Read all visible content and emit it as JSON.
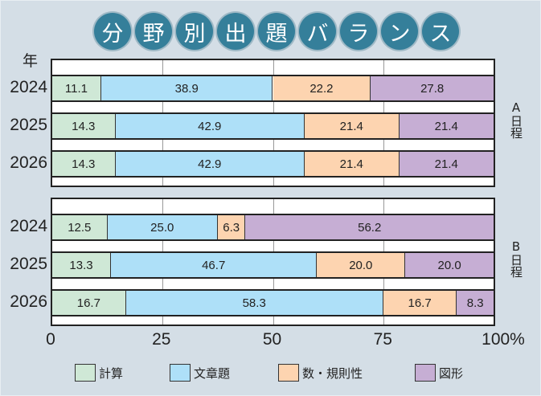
{
  "title_chars": [
    "分",
    "野",
    "別",
    "出",
    "題",
    "バ",
    "ラ",
    "ン",
    "ス"
  ],
  "chart_data": {
    "type": "bar",
    "stacked": true,
    "orientation": "horizontal",
    "title": "分野別出題バランス",
    "ylabel": "年",
    "xlim": [
      0,
      100
    ],
    "x_ticks": [
      "0",
      "25",
      "50",
      "75",
      "100%"
    ],
    "series_names": [
      "計算",
      "文章題",
      "数・規則性",
      "図形"
    ],
    "colors": [
      "#cfe8d6",
      "#aee0f8",
      "#fdd4b0",
      "#c6aed4"
    ],
    "groups": [
      {
        "label": "A日程",
        "rows": [
          {
            "year": "2024",
            "values": [
              "11.1",
              "38.9",
              "22.2",
              "27.8"
            ]
          },
          {
            "year": "2025",
            "values": [
              "14.3",
              "42.9",
              "21.4",
              "21.4"
            ]
          },
          {
            "year": "2026",
            "values": [
              "14.3",
              "42.9",
              "21.4",
              "21.4"
            ]
          }
        ]
      },
      {
        "label": "B日程",
        "rows": [
          {
            "year": "2024",
            "values": [
              "12.5",
              "25.0",
              "6.3",
              "56.2"
            ]
          },
          {
            "year": "2025",
            "values": [
              "13.3",
              "46.7",
              "20.0",
              "20.0"
            ]
          },
          {
            "year": "2026",
            "values": [
              "16.7",
              "58.3",
              "16.7",
              "8.3"
            ]
          }
        ]
      }
    ],
    "legend_position": "bottom"
  }
}
